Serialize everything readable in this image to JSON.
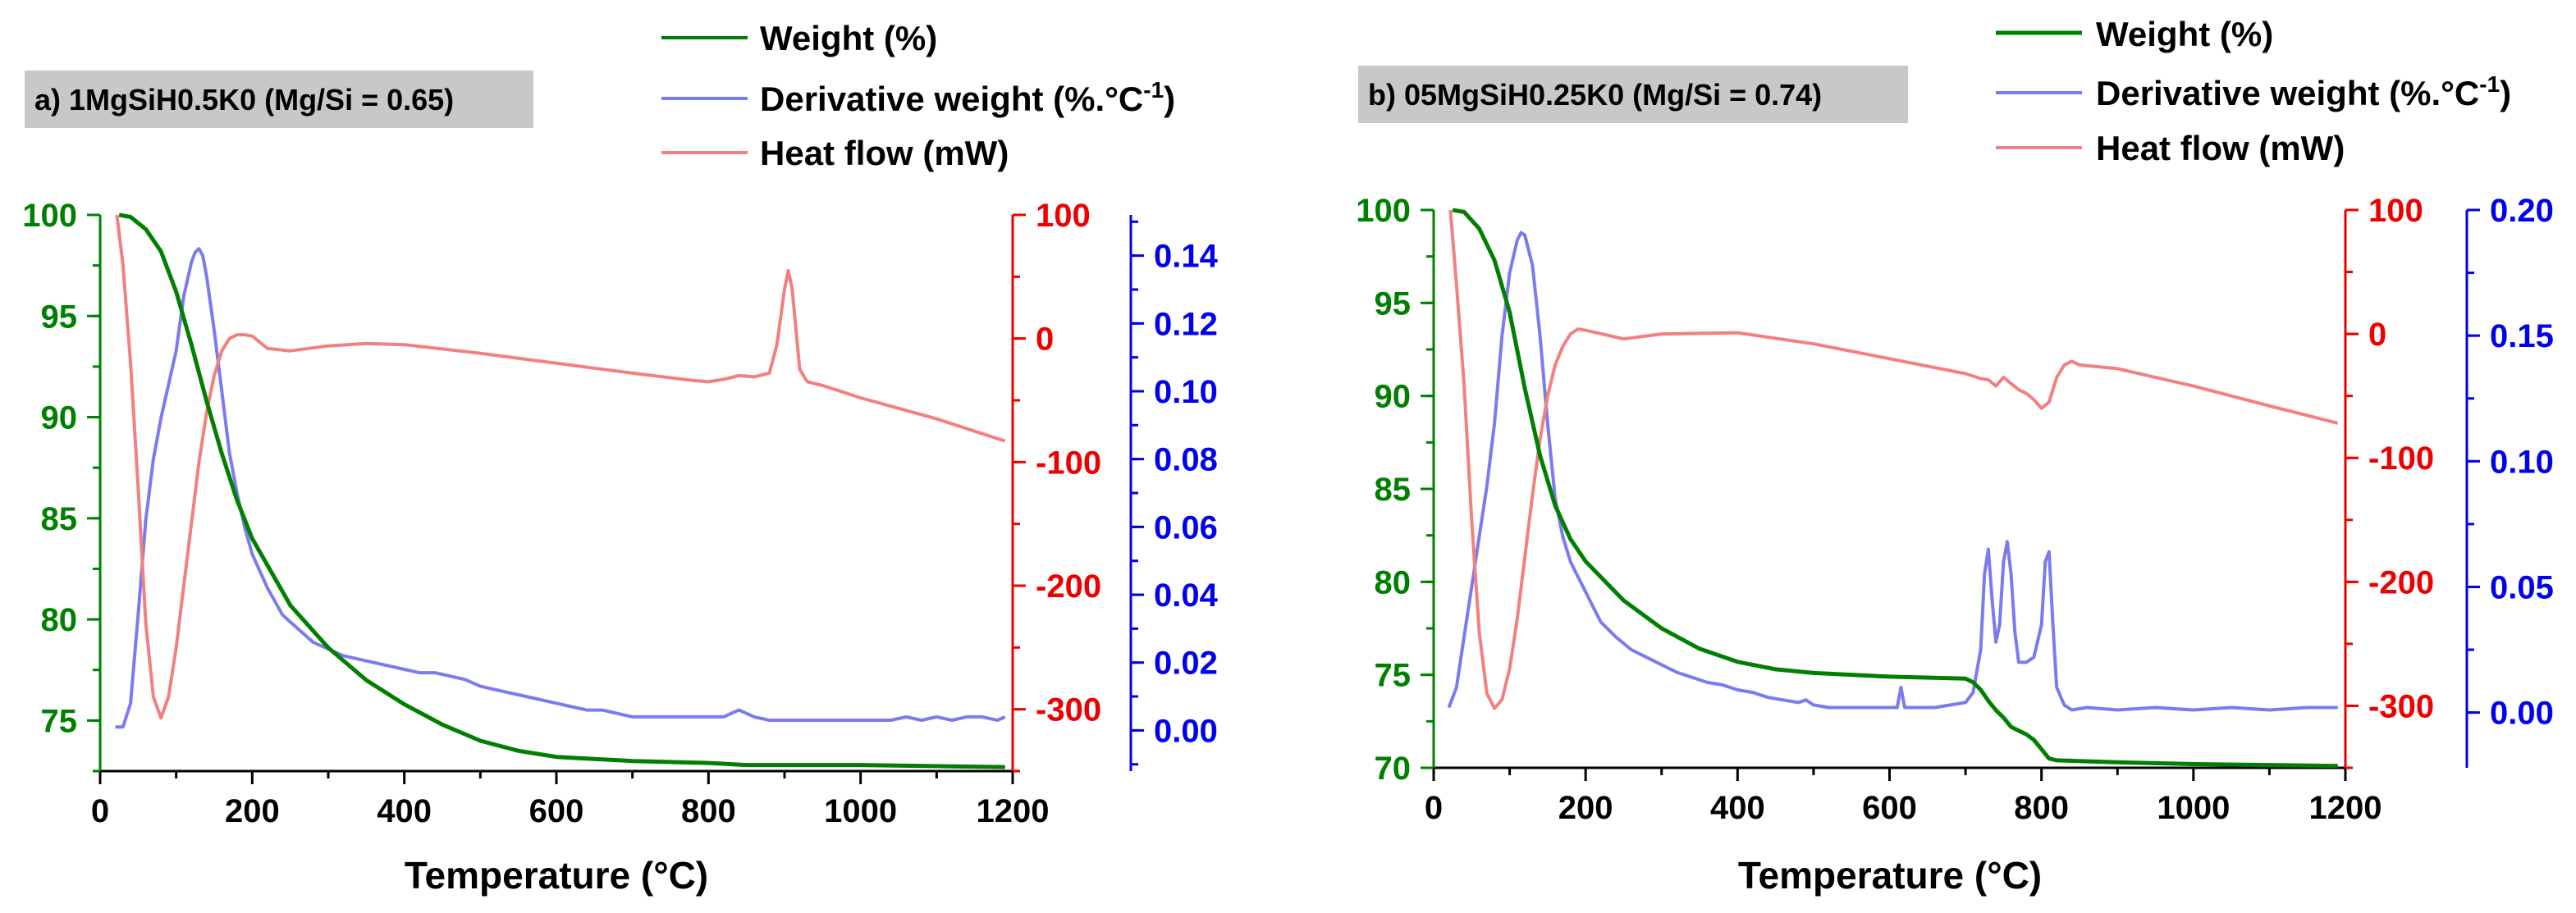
{
  "colors": {
    "weight": "#007f00",
    "derivative": "#7b7bf0",
    "heat": "#f28080",
    "left_axis": "#008000",
    "mid_axis": "#ee0000",
    "right_axis": "#0000ee",
    "label_box": "#c8c8c8"
  },
  "chart_data": [
    {
      "type": "line",
      "panel_label": "a) 1MgSiH0.5K0 (Mg/Si = 0.65)",
      "xlabel": "Temperature (°C)",
      "xlim": [
        0,
        1200
      ],
      "xticks": [
        "0",
        "200",
        "400",
        "600",
        "800",
        "1000",
        "1200"
      ],
      "xtick_values": [
        0,
        200,
        400,
        600,
        800,
        1000,
        1200
      ],
      "legend": [
        {
          "name": "Weight (%)",
          "key": "weight"
        },
        {
          "name": "Derivative weight (%.°C",
          "sup": "-1",
          "tail": ")",
          "key": "derivative"
        },
        {
          "name": "Heat flow (mW)",
          "key": "heat"
        }
      ],
      "axes": {
        "weight": {
          "lim": [
            72.5,
            100
          ],
          "ticks": [
            "75",
            "80",
            "85",
            "90",
            "95",
            "100"
          ],
          "tick_values": [
            75,
            80,
            85,
            90,
            95,
            100
          ],
          "minor": 2.5
        },
        "heat": {
          "lim": [
            -350,
            100
          ],
          "ticks": [
            "-300",
            "-200",
            "-100",
            "0",
            "100"
          ],
          "tick_values": [
            -300,
            -200,
            -100,
            0,
            100
          ],
          "minor": 50
        },
        "derivative": {
          "lim": [
            -0.012,
            0.152
          ],
          "ticks": [
            "0.00",
            "0.02",
            "0.04",
            "0.06",
            "0.08",
            "0.10",
            "0.12",
            "0.14"
          ],
          "tick_values": [
            0,
            0.02,
            0.04,
            0.06,
            0.08,
            0.1,
            0.12,
            0.14
          ],
          "minor": 0.01
        }
      },
      "series": [
        {
          "name": "Weight (%)",
          "key": "weight",
          "axis": "weight",
          "x": [
            25,
            40,
            60,
            80,
            100,
            120,
            140,
            160,
            180,
            200,
            250,
            300,
            350,
            400,
            450,
            500,
            550,
            600,
            650,
            700,
            800,
            850,
            1000,
            1190
          ],
          "y": [
            100,
            99.9,
            99.3,
            98.2,
            96.2,
            93.6,
            90.8,
            88.2,
            85.9,
            84.0,
            80.7,
            78.6,
            77.0,
            75.8,
            74.8,
            74.0,
            73.5,
            73.2,
            73.1,
            73.0,
            72.9,
            72.8,
            72.8,
            72.7
          ]
        },
        {
          "name": "Derivative weight (%.°C-1)",
          "key": "derivative",
          "axis": "derivative",
          "x": [
            20,
            30,
            40,
            50,
            60,
            70,
            80,
            90,
            100,
            110,
            120,
            125,
            130,
            135,
            140,
            150,
            160,
            170,
            180,
            190,
            200,
            220,
            240,
            260,
            280,
            300,
            320,
            340,
            360,
            380,
            400,
            420,
            440,
            460,
            480,
            500,
            520,
            540,
            560,
            580,
            600,
            620,
            640,
            660,
            680,
            700,
            720,
            740,
            760,
            780,
            800,
            820,
            830,
            840,
            850,
            860,
            880,
            900,
            920,
            940,
            960,
            980,
            1000,
            1020,
            1040,
            1060,
            1080,
            1100,
            1120,
            1140,
            1160,
            1180,
            1190
          ],
          "y": [
            0.001,
            0.001,
            0.008,
            0.034,
            0.062,
            0.08,
            0.092,
            0.102,
            0.112,
            0.128,
            0.138,
            0.141,
            0.142,
            0.14,
            0.134,
            0.118,
            0.1,
            0.082,
            0.07,
            0.06,
            0.052,
            0.042,
            0.034,
            0.03,
            0.026,
            0.024,
            0.022,
            0.021,
            0.02,
            0.019,
            0.018,
            0.017,
            0.017,
            0.016,
            0.015,
            0.013,
            0.012,
            0.011,
            0.01,
            0.009,
            0.008,
            0.007,
            0.006,
            0.006,
            0.005,
            0.004,
            0.004,
            0.004,
            0.004,
            0.004,
            0.004,
            0.004,
            0.005,
            0.006,
            0.005,
            0.004,
            0.003,
            0.003,
            0.003,
            0.003,
            0.003,
            0.003,
            0.003,
            0.003,
            0.003,
            0.004,
            0.003,
            0.004,
            0.003,
            0.004,
            0.004,
            0.003,
            0.004
          ]
        },
        {
          "name": "Heat flow (mW)",
          "key": "heat",
          "axis": "heat",
          "x": [
            22,
            30,
            40,
            50,
            60,
            70,
            80,
            90,
            100,
            110,
            120,
            130,
            140,
            150,
            160,
            170,
            180,
            190,
            200,
            220,
            250,
            300,
            350,
            400,
            500,
            600,
            700,
            780,
            800,
            820,
            840,
            860,
            880,
            890,
            900,
            905,
            910,
            920,
            930,
            950,
            1000,
            1100,
            1190
          ],
          "y": [
            100,
            60,
            -20,
            -120,
            -230,
            -290,
            -307,
            -290,
            -250,
            -200,
            -150,
            -100,
            -60,
            -30,
            -10,
            0,
            3,
            3,
            2,
            -8,
            -10,
            -6,
            -4,
            -5,
            -12,
            -20,
            -28,
            -34,
            -35,
            -33,
            -30,
            -31,
            -28,
            -5,
            40,
            55,
            40,
            -25,
            -35,
            -38,
            -48,
            -65,
            -83
          ]
        }
      ]
    },
    {
      "type": "line",
      "panel_label": "b) 05MgSiH0.25K0 (Mg/Si = 0.74)",
      "xlabel": "Temperature (°C)",
      "xlim": [
        0,
        1200
      ],
      "xticks": [
        "0",
        "200",
        "400",
        "600",
        "800",
        "1000",
        "1200"
      ],
      "xtick_values": [
        0,
        200,
        400,
        600,
        800,
        1000,
        1200
      ],
      "legend": [
        {
          "name": "Weight (%)",
          "key": "weight"
        },
        {
          "name": "Derivative weight (%.°C",
          "sup": "-1",
          "tail": ")",
          "key": "derivative"
        },
        {
          "name": "Heat flow (mW)",
          "key": "heat"
        }
      ],
      "axes": {
        "weight": {
          "lim": [
            70,
            100
          ],
          "ticks": [
            "70",
            "75",
            "80",
            "85",
            "90",
            "95",
            "100"
          ],
          "tick_values": [
            70,
            75,
            80,
            85,
            90,
            95,
            100
          ],
          "minor": 2.5
        },
        "heat": {
          "lim": [
            -350,
            100
          ],
          "ticks": [
            "-300",
            "-200",
            "-100",
            "0",
            "100"
          ],
          "tick_values": [
            -300,
            -200,
            -100,
            0,
            100
          ],
          "minor": 50
        },
        "derivative": {
          "lim": [
            -0.022,
            0.2
          ],
          "ticks": [
            "0.00",
            "0.05",
            "0.10",
            "0.15",
            "0.20"
          ],
          "tick_values": [
            0,
            0.05,
            0.1,
            0.15,
            0.2
          ],
          "minor": 0.025
        }
      },
      "series": [
        {
          "name": "Weight (%)",
          "key": "weight",
          "axis": "weight",
          "x": [
            25,
            40,
            60,
            80,
            100,
            120,
            140,
            160,
            180,
            200,
            250,
            300,
            350,
            400,
            450,
            500,
            600,
            700,
            710,
            720,
            730,
            740,
            750,
            760,
            770,
            780,
            790,
            800,
            810,
            820,
            900,
            1000,
            1190
          ],
          "y": [
            100,
            99.9,
            99.0,
            97.3,
            94.5,
            90.4,
            86.8,
            84.1,
            82.3,
            81.1,
            79.0,
            77.5,
            76.4,
            75.7,
            75.3,
            75.1,
            74.9,
            74.8,
            74.6,
            74.2,
            73.6,
            73.1,
            72.7,
            72.2,
            72.0,
            71.8,
            71.5,
            71.0,
            70.5,
            70.4,
            70.3,
            70.2,
            70.1
          ]
        },
        {
          "name": "Derivative weight (%.°C-1)",
          "key": "derivative",
          "axis": "derivative",
          "x": [
            20,
            30,
            40,
            50,
            60,
            70,
            80,
            90,
            100,
            110,
            115,
            120,
            130,
            140,
            150,
            160,
            170,
            180,
            190,
            200,
            210,
            220,
            240,
            260,
            280,
            300,
            320,
            340,
            360,
            380,
            400,
            420,
            440,
            460,
            480,
            490,
            500,
            520,
            540,
            560,
            580,
            600,
            610,
            615,
            620,
            640,
            660,
            680,
            700,
            710,
            720,
            725,
            730,
            735,
            740,
            745,
            750,
            755,
            760,
            765,
            770,
            780,
            790,
            800,
            805,
            810,
            815,
            820,
            830,
            840,
            860,
            900,
            950,
            1000,
            1050,
            1100,
            1150,
            1190
          ],
          "y": [
            0.002,
            0.01,
            0.03,
            0.05,
            0.07,
            0.09,
            0.115,
            0.15,
            0.175,
            0.188,
            0.191,
            0.19,
            0.178,
            0.15,
            0.115,
            0.085,
            0.07,
            0.06,
            0.054,
            0.048,
            0.042,
            0.036,
            0.03,
            0.025,
            0.022,
            0.019,
            0.016,
            0.014,
            0.012,
            0.011,
            0.009,
            0.008,
            0.006,
            0.005,
            0.004,
            0.005,
            0.003,
            0.002,
            0.002,
            0.002,
            0.002,
            0.002,
            0.002,
            0.01,
            0.002,
            0.002,
            0.002,
            0.003,
            0.004,
            0.008,
            0.025,
            0.055,
            0.065,
            0.045,
            0.028,
            0.035,
            0.06,
            0.068,
            0.055,
            0.032,
            0.02,
            0.02,
            0.022,
            0.035,
            0.06,
            0.064,
            0.035,
            0.01,
            0.003,
            0.001,
            0.002,
            0.001,
            0.002,
            0.001,
            0.002,
            0.001,
            0.002,
            0.002
          ]
        },
        {
          "name": "Heat flow (mW)",
          "key": "heat",
          "axis": "heat",
          "x": [
            22,
            30,
            40,
            50,
            60,
            70,
            80,
            90,
            100,
            110,
            120,
            130,
            140,
            150,
            160,
            170,
            180,
            190,
            200,
            250,
            300,
            400,
            500,
            600,
            700,
            720,
            730,
            740,
            750,
            760,
            770,
            780,
            790,
            800,
            810,
            820,
            830,
            840,
            850,
            900,
            1000,
            1100,
            1190
          ],
          "y": [
            100,
            40,
            -40,
            -150,
            -240,
            -290,
            -302,
            -295,
            -270,
            -230,
            -180,
            -130,
            -85,
            -50,
            -25,
            -10,
            0,
            4,
            3,
            -4,
            0,
            1,
            -8,
            -20,
            -32,
            -36,
            -37,
            -42,
            -35,
            -40,
            -45,
            -48,
            -53,
            -60,
            -55,
            -35,
            -25,
            -22,
            -25,
            -28,
            -42,
            -58,
            -72
          ]
        }
      ]
    }
  ]
}
